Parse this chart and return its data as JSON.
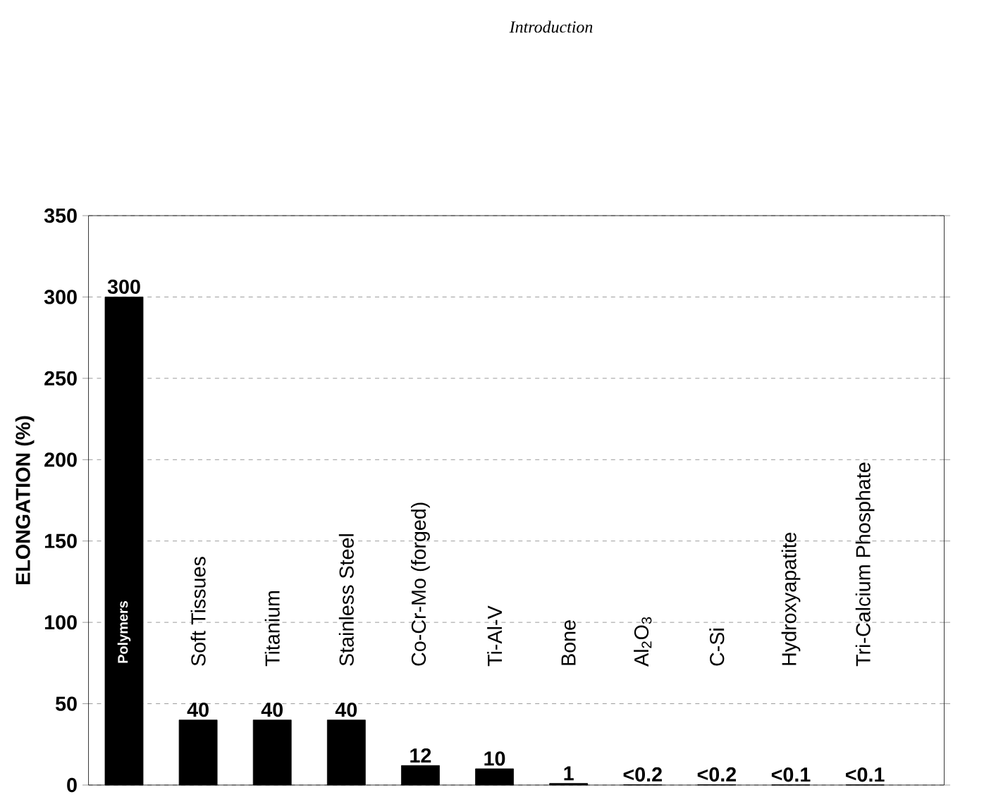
{
  "chart_data": {
    "type": "bar",
    "categories": [
      "Polymers",
      "Soft Tissues",
      "Titanium",
      "Stainless Steel",
      "Co-Cr-Mo (forged)",
      "Ti-Al-V",
      "Bone",
      "Al$_{2}$O$_{3}$",
      "C-Si",
      "Hydroxyapatite",
      "Tri-Calcium Phosphate"
    ],
    "values": [
      300,
      40,
      40,
      40,
      12,
      10,
      1,
      0.2,
      0.2,
      0.1,
      0.1
    ],
    "value_labels": [
      "300",
      "40",
      "40",
      "40",
      "12",
      "10",
      "1",
      "<0.2",
      "<0.2",
      "<0.1",
      "<0.1"
    ],
    "color": "#000000",
    "ylabel": "ELONGATION (%)",
    "ylim": [
      0,
      350
    ],
    "yticks": [
      0,
      50,
      100,
      150,
      200,
      250,
      300,
      350
    ],
    "grid": "y",
    "annotations": [
      "Introduction"
    ]
  }
}
